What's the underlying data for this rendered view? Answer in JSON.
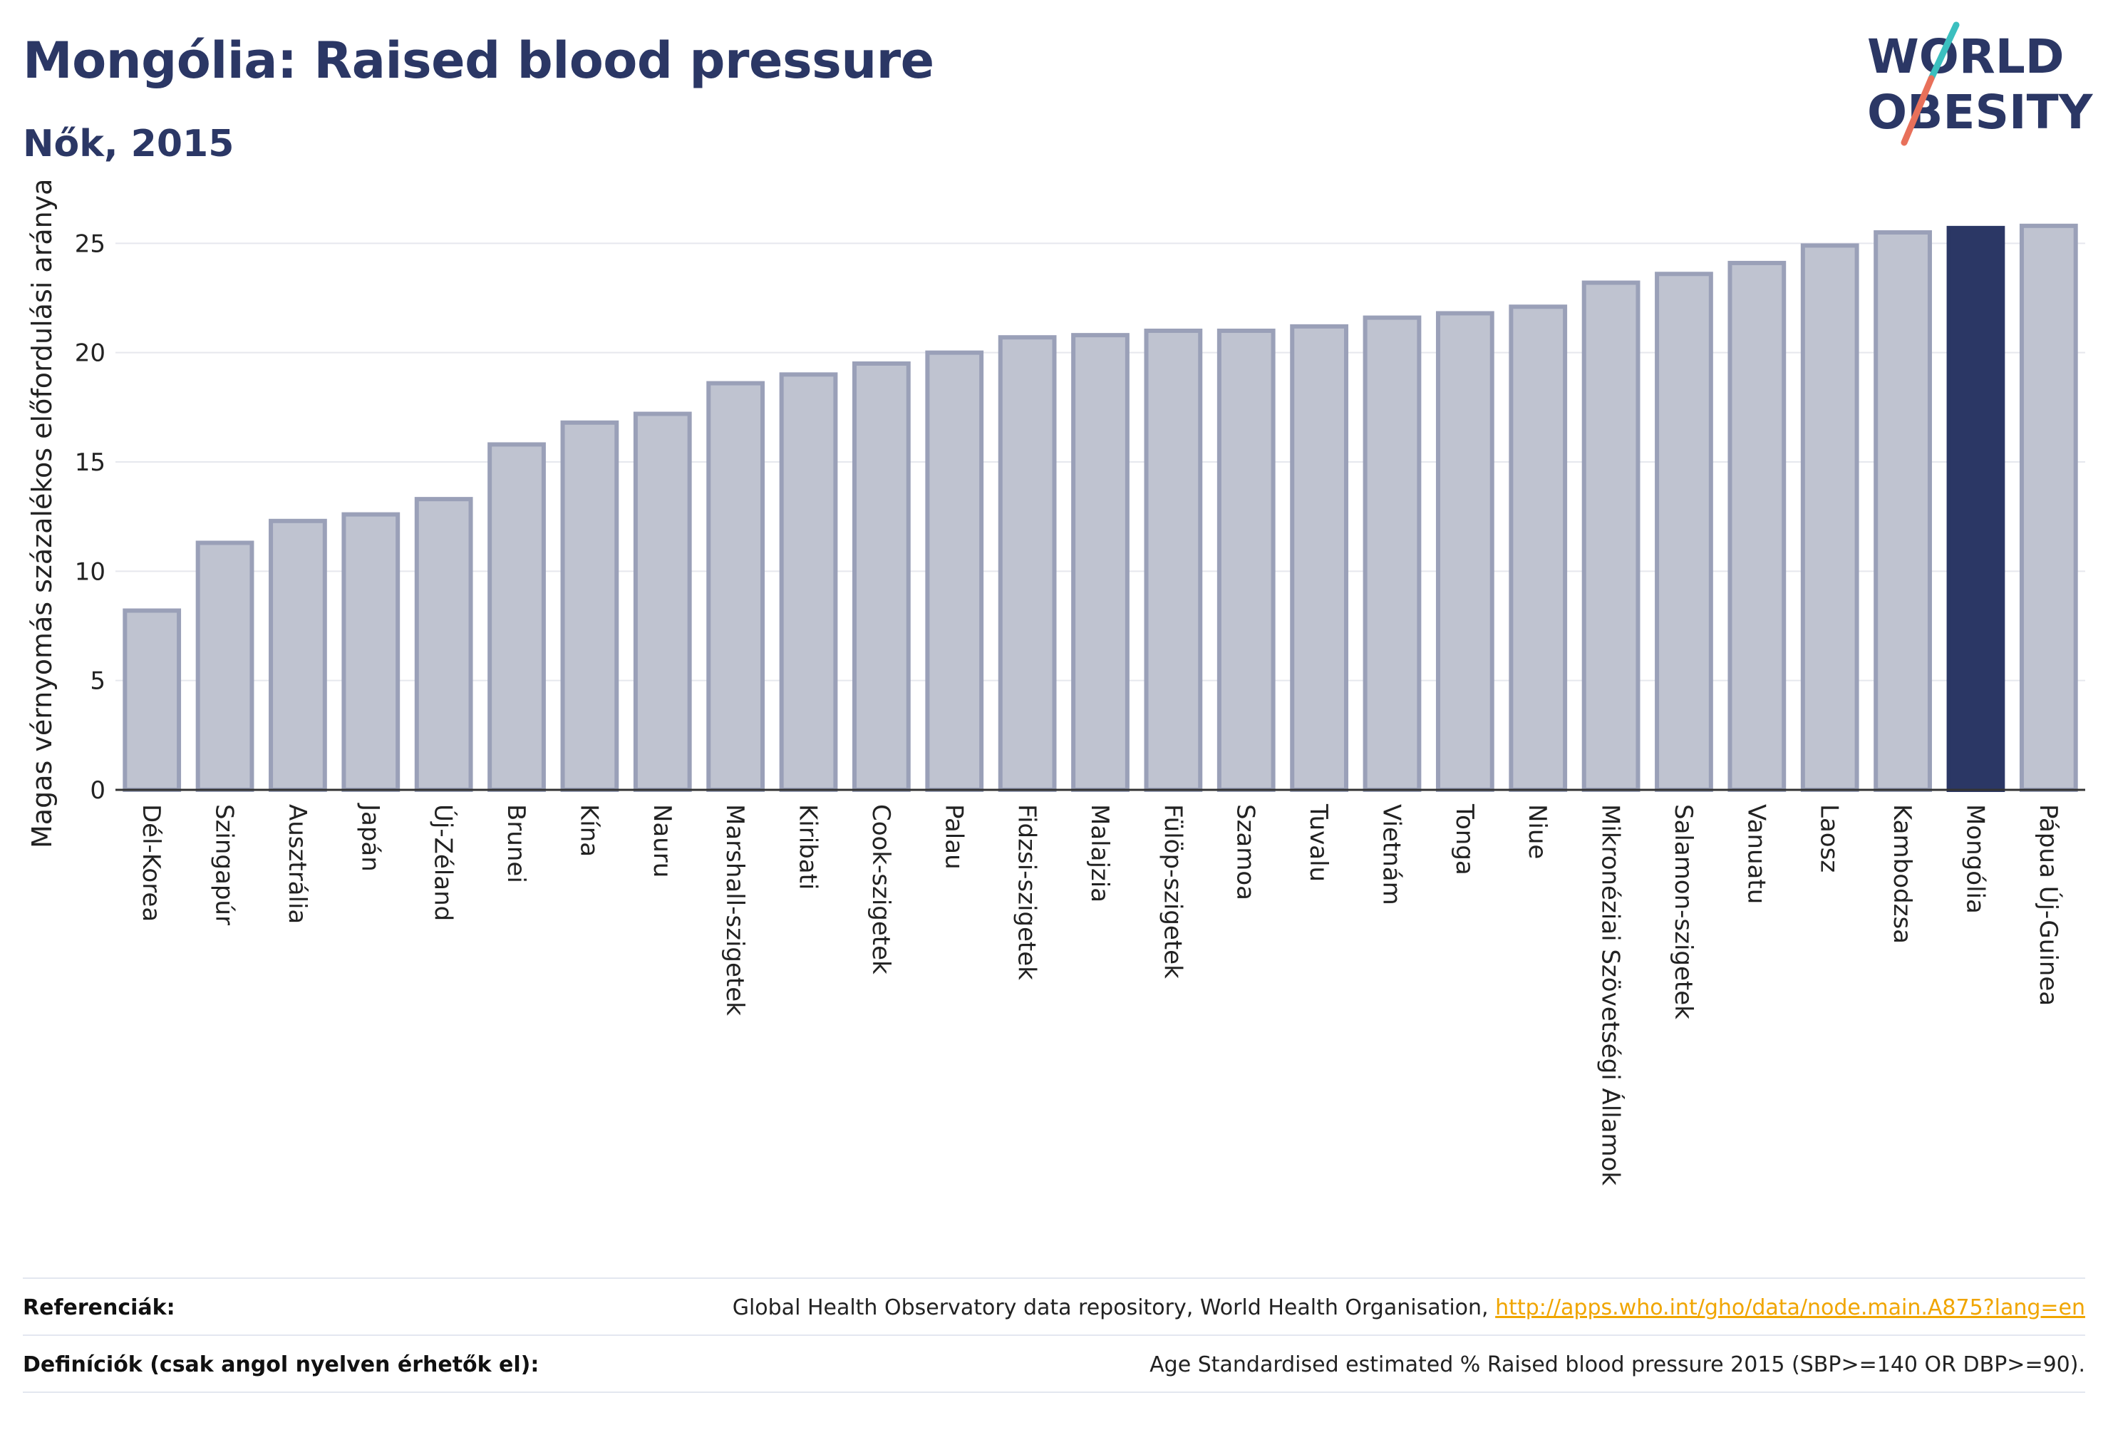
{
  "header": {
    "title": "Mongólia: Raised blood pressure",
    "subtitle": "Nők, 2015"
  },
  "logo": {
    "line1": "WORLD",
    "line2": "OBESITY",
    "colors": {
      "text": "#2b3765",
      "slash_teal": "#3bbfbf",
      "slash_red": "#e8705a"
    }
  },
  "chart_data": {
    "type": "bar",
    "title": "Mongólia: Raised blood pressure",
    "subtitle": "Nők, 2015",
    "xlabel": "",
    "ylabel": "Magas vérnyomás százalékos előfordulási aránya",
    "ylim": [
      0,
      27
    ],
    "yticks": [
      0,
      5,
      10,
      15,
      20,
      25
    ],
    "grid": true,
    "highlight": "Mongólia",
    "colors": {
      "bar": "#bfc3d0",
      "bar_stroke": "#9aa0b8",
      "highlight": "#2b3765"
    },
    "categories": [
      "Dél-Korea",
      "Szingapúr",
      "Ausztrália",
      "Japán",
      "Új-Zéland",
      "Brunei",
      "Kína",
      "Nauru",
      "Marshall-szigetek",
      "Kiribati",
      "Cook-szigetek",
      "Palau",
      "Fidzsi-szigetek",
      "Malajzia",
      "Fülöp-szigetek",
      "Szamoa",
      "Tuvalu",
      "Vietnám",
      "Tonga",
      "Niue",
      "Mikronéziai Szövetségi Államok",
      "Salamon-szigetek",
      "Vanuatu",
      "Laosz",
      "Kambodzsa",
      "Mongólia",
      "Pápua Új-Guinea"
    ],
    "values": [
      8.2,
      11.3,
      12.3,
      12.6,
      13.3,
      15.8,
      16.8,
      17.2,
      18.6,
      19.0,
      19.5,
      20.0,
      20.7,
      20.8,
      21.0,
      21.0,
      21.2,
      21.6,
      21.8,
      22.1,
      23.2,
      23.6,
      24.1,
      24.9,
      25.5,
      25.7,
      25.8
    ]
  },
  "footer": {
    "references_label": "Referenciák:",
    "references_text": "Global Health Observatory data repository, World Health Organisation,",
    "references_link": "http://apps.who.int/gho/data/node.main.A875?lang=en",
    "definitions_label": "Definíciók (csak angol nyelven érhetők el):",
    "definitions_text": "Age Standardised estimated % Raised blood pressure 2015 (SBP>=140 OR DBP>=90)."
  }
}
